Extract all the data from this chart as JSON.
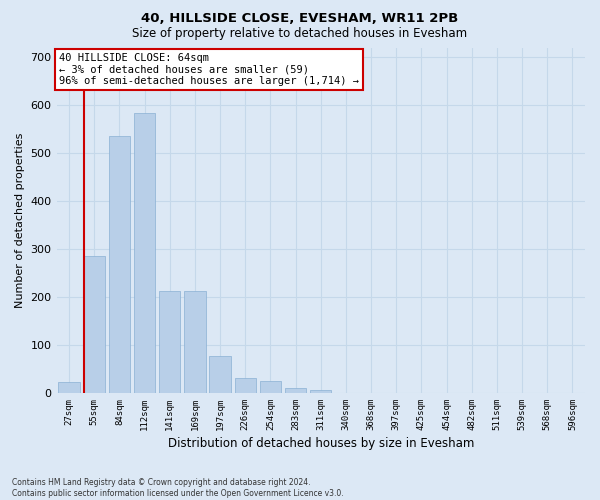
{
  "title": "40, HILLSIDE CLOSE, EVESHAM, WR11 2PB",
  "subtitle": "Size of property relative to detached houses in Evesham",
  "xlabel": "Distribution of detached houses by size in Evesham",
  "ylabel": "Number of detached properties",
  "bar_color": "#b8cfe8",
  "bar_edge_color": "#8ab0d4",
  "highlight_color": "#cc0000",
  "annotation_text": "40 HILLSIDE CLOSE: 64sqm\n← 3% of detached houses are smaller (59)\n96% of semi-detached houses are larger (1,714) →",
  "annotation_box_color": "white",
  "annotation_box_edge_color": "#cc0000",
  "categories": [
    "27sqm",
    "55sqm",
    "84sqm",
    "112sqm",
    "141sqm",
    "169sqm",
    "197sqm",
    "226sqm",
    "254sqm",
    "283sqm",
    "311sqm",
    "340sqm",
    "368sqm",
    "397sqm",
    "425sqm",
    "454sqm",
    "482sqm",
    "511sqm",
    "539sqm",
    "568sqm",
    "596sqm"
  ],
  "values": [
    22,
    285,
    535,
    583,
    212,
    212,
    78,
    32,
    25,
    10,
    7,
    0,
    0,
    0,
    0,
    0,
    0,
    0,
    0,
    0,
    0
  ],
  "ylim": [
    0,
    720
  ],
  "yticks": [
    0,
    100,
    200,
    300,
    400,
    500,
    600,
    700
  ],
  "grid_color": "#c5d8ea",
  "background_color": "#dce8f5",
  "footer": "Contains HM Land Registry data © Crown copyright and database right 2024.\nContains public sector information licensed under the Open Government Licence v3.0.",
  "property_bin_index": 1,
  "figsize": [
    6.0,
    5.0
  ],
  "dpi": 100
}
